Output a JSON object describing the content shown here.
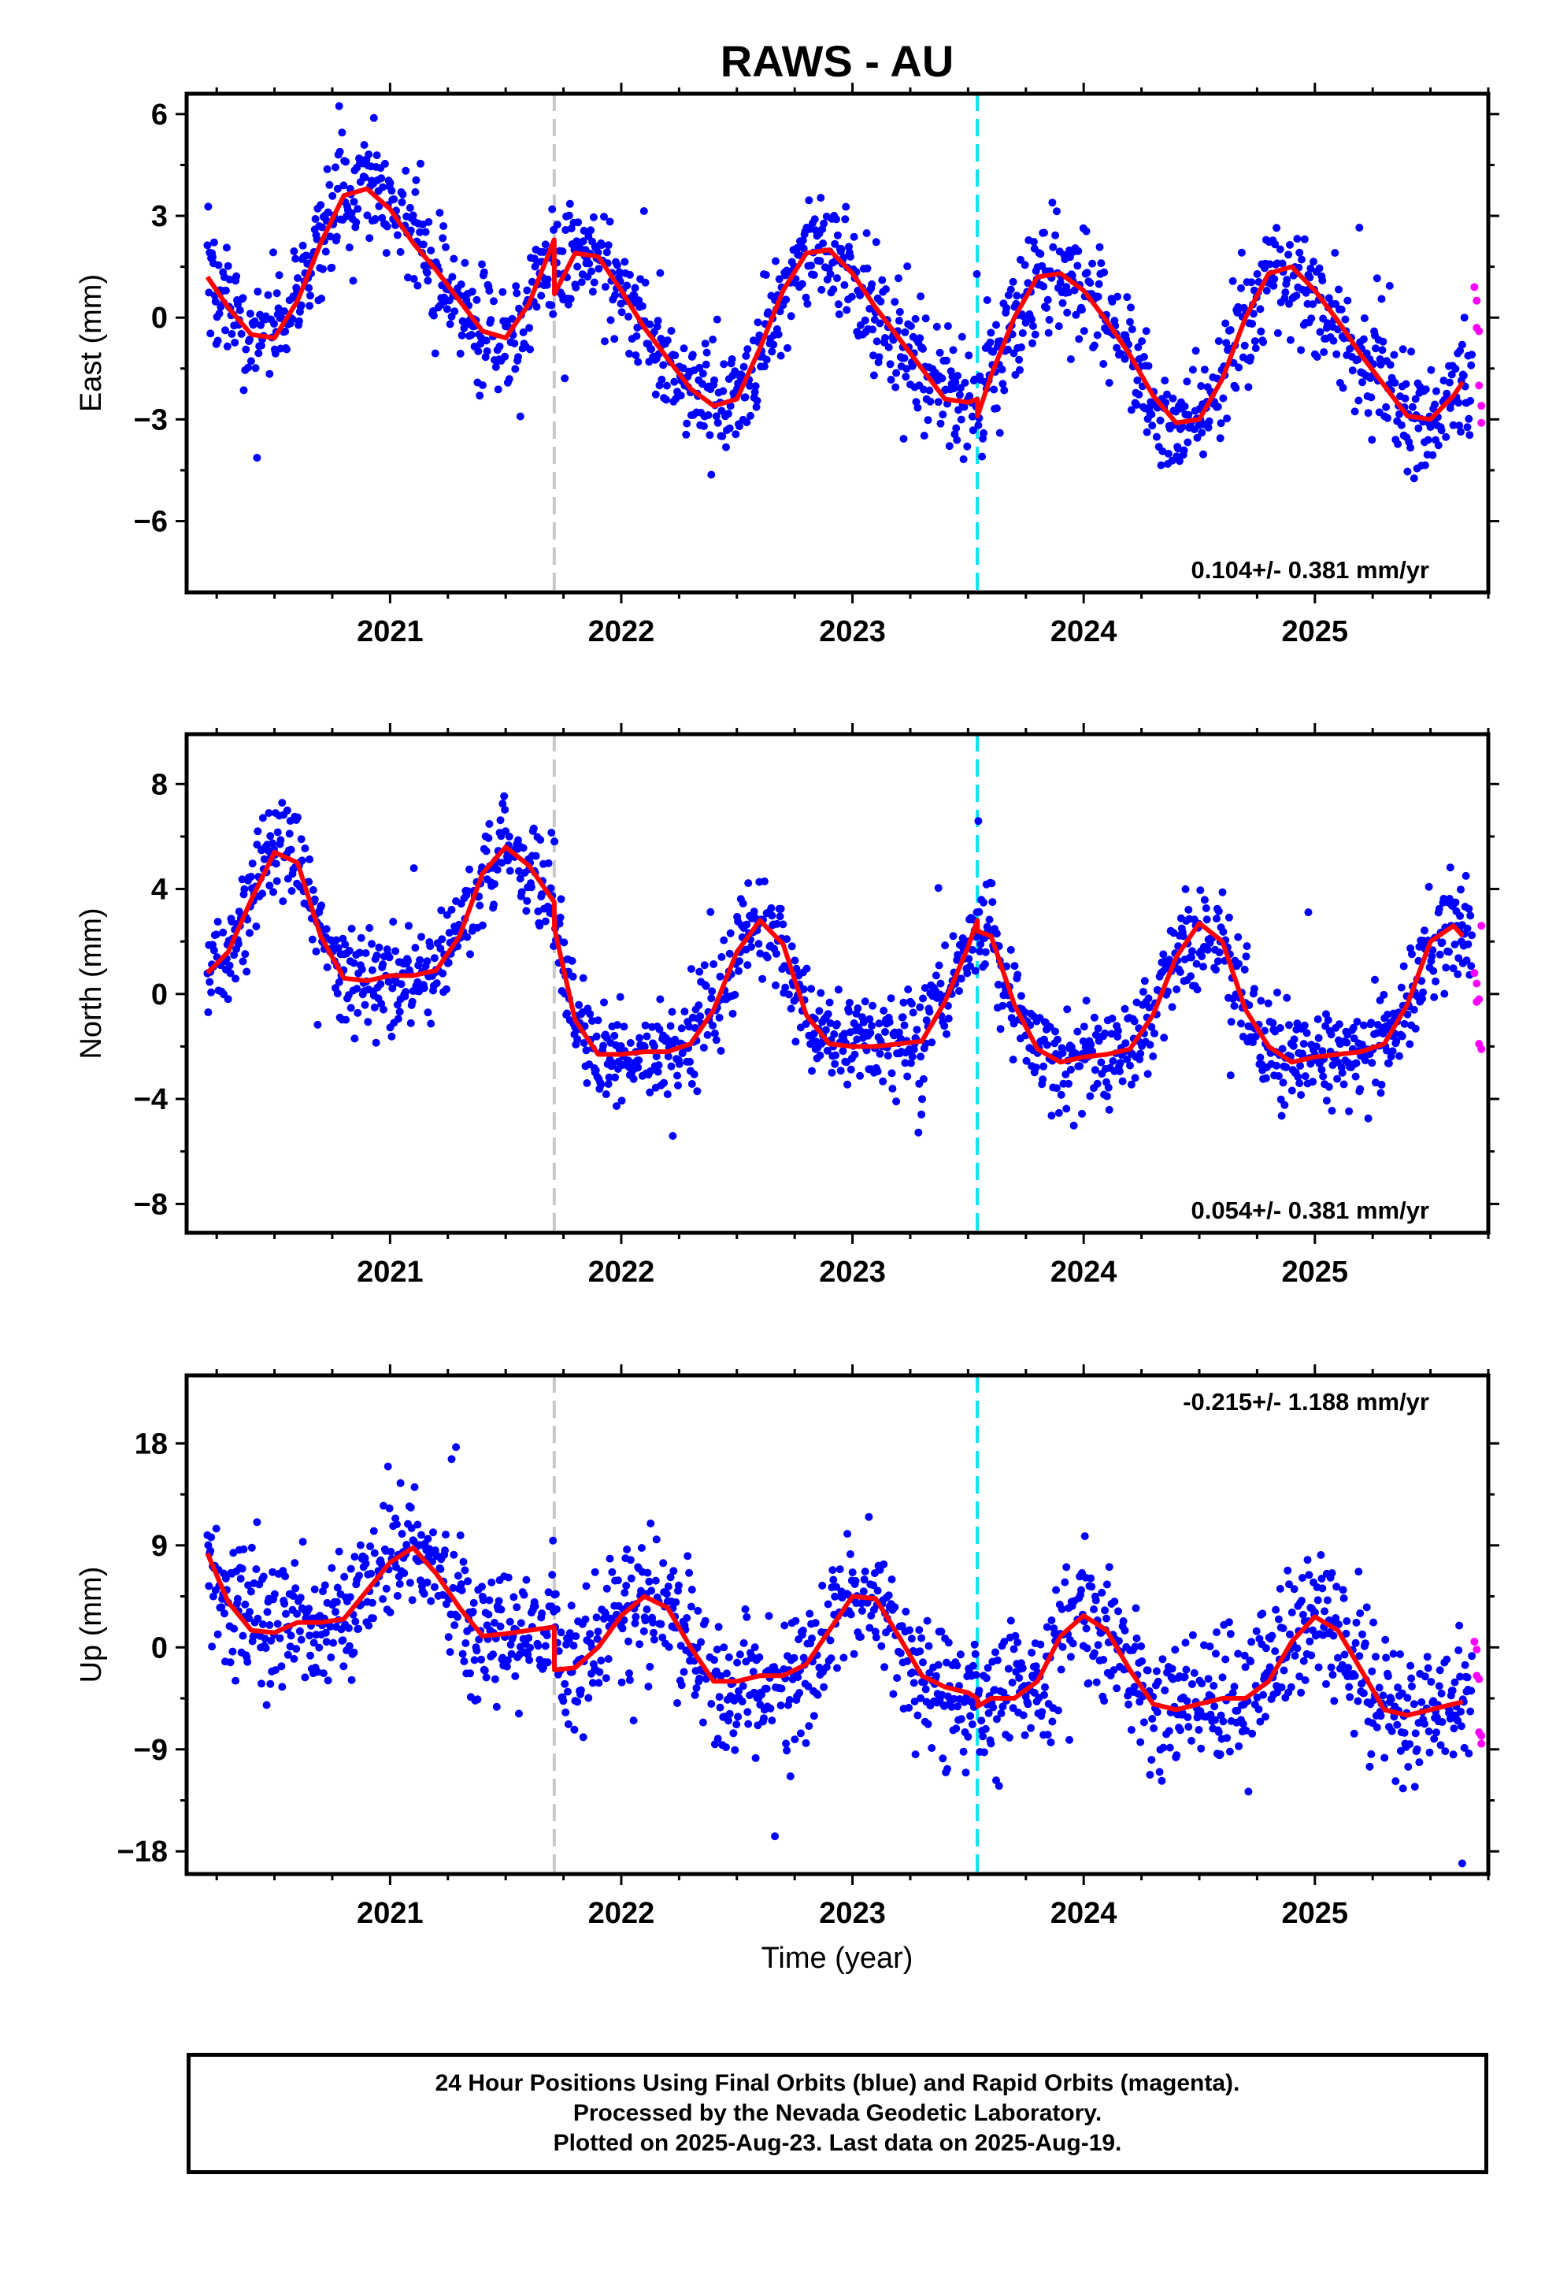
{
  "figure": {
    "title": "RAWS - AU",
    "xlabel": "Time (year)"
  },
  "footer": {
    "lines": [
      "24 Hour Positions Using Final Orbits (blue) and Rapid Orbits (magenta).",
      "Processed by the Nevada Geodetic Laboratory.",
      "Plotted on 2025-Aug-23. Last data on 2025-Aug-19."
    ]
  },
  "colors": {
    "final_orbits": "#0000ff",
    "rapid_orbits": "#ff00ff",
    "model_fit": "#ff0000",
    "antenna_change": "#c8c8c8",
    "equipment_change": "#00e5ee",
    "frame": "#000000"
  },
  "chart_data": [
    {
      "type": "scatter",
      "component": "east",
      "ylabel": "East (mm)",
      "xlim": [
        2020.12,
        2025.75
      ],
      "ylim": [
        -8.1,
        6.6
      ],
      "yticks": [
        -6,
        -3,
        0,
        3,
        6
      ],
      "xticks": [
        2021,
        2022,
        2023,
        2024,
        2025
      ],
      "rate_label": "0.104+/- 0.381 mm/yr",
      "rate_position": "bottom-right",
      "vertical_markers": [
        {
          "x": 2021.71,
          "style": "dashed",
          "color": "gray"
        },
        {
          "x": 2023.54,
          "style": "dashed",
          "color": "cyan"
        }
      ],
      "model": {
        "name": "model fit",
        "x": [
          2020.21,
          2020.3,
          2020.4,
          2020.5,
          2020.6,
          2020.7,
          2020.8,
          2020.9,
          2021.0,
          2021.1,
          2021.2,
          2021.3,
          2021.4,
          2021.5,
          2021.6,
          2021.71,
          2021.711,
          2021.8,
          2021.9,
          2022.0,
          2022.1,
          2022.2,
          2022.3,
          2022.4,
          2022.5,
          2022.6,
          2022.7,
          2022.8,
          2022.9,
          2023.0,
          2023.1,
          2023.2,
          2023.3,
          2023.4,
          2023.5,
          2023.54,
          2023.541,
          2023.6,
          2023.7,
          2023.8,
          2023.9,
          2024.0,
          2024.1,
          2024.2,
          2024.3,
          2024.4,
          2024.5,
          2024.6,
          2024.7,
          2024.8,
          2024.9,
          2025.0,
          2025.1,
          2025.2,
          2025.3,
          2025.4,
          2025.5,
          2025.6,
          2025.64
        ],
        "y": [
          1.2,
          0.3,
          -0.5,
          -0.6,
          0.5,
          2.2,
          3.6,
          3.8,
          3.2,
          2.2,
          1.4,
          0.5,
          -0.4,
          -0.6,
          0.4,
          2.3,
          0.7,
          1.9,
          1.8,
          0.8,
          -0.3,
          -1.2,
          -2.1,
          -2.6,
          -2.4,
          -0.9,
          0.8,
          1.9,
          2.0,
          1.3,
          0.3,
          -0.6,
          -1.5,
          -2.4,
          -2.5,
          -2.4,
          -2.9,
          -1.7,
          0.0,
          1.2,
          1.3,
          0.8,
          -0.1,
          -1.1,
          -2.3,
          -3.1,
          -3.0,
          -1.8,
          0.0,
          1.3,
          1.5,
          0.8,
          -0.1,
          -1.1,
          -2.0,
          -2.9,
          -3.0,
          -2.3,
          -1.9
        ]
      },
      "rapid_points": {
        "x": [
          2025.69,
          2025.7,
          2025.7,
          2025.71,
          2025.71,
          2025.72,
          2025.72
        ],
        "y": [
          0.9,
          0.5,
          -0.3,
          -0.4,
          -2.0,
          -2.6,
          -3.1
        ]
      }
    },
    {
      "type": "scatter",
      "component": "north",
      "ylabel": "North (mm)",
      "xlim": [
        2020.12,
        2025.75
      ],
      "ylim": [
        -9.1,
        9.9
      ],
      "yticks": [
        -8,
        -4,
        0,
        4,
        8
      ],
      "xticks": [
        2021,
        2022,
        2023,
        2024,
        2025
      ],
      "rate_label": "0.054+/- 0.381 mm/yr",
      "rate_position": "bottom-right",
      "vertical_markers": [
        {
          "x": 2021.71,
          "style": "dashed",
          "color": "gray"
        },
        {
          "x": 2023.54,
          "style": "dashed",
          "color": "cyan"
        }
      ],
      "model": {
        "name": "model fit",
        "x": [
          2020.21,
          2020.3,
          2020.4,
          2020.5,
          2020.6,
          2020.7,
          2020.8,
          2020.9,
          2021.0,
          2021.1,
          2021.2,
          2021.3,
          2021.4,
          2021.5,
          2021.6,
          2021.71,
          2021.711,
          2021.8,
          2021.9,
          2022.0,
          2022.1,
          2022.2,
          2022.3,
          2022.4,
          2022.5,
          2022.6,
          2022.7,
          2022.8,
          2022.9,
          2023.0,
          2023.1,
          2023.2,
          2023.3,
          2023.4,
          2023.5,
          2023.54,
          2023.541,
          2023.6,
          2023.7,
          2023.8,
          2023.9,
          2024.0,
          2024.1,
          2024.2,
          2024.3,
          2024.4,
          2024.5,
          2024.6,
          2024.7,
          2024.8,
          2024.9,
          2025.0,
          2025.1,
          2025.2,
          2025.3,
          2025.4,
          2025.5,
          2025.6,
          2025.64
        ],
        "y": [
          0.8,
          1.6,
          3.6,
          5.4,
          5.0,
          2.2,
          0.6,
          0.5,
          0.7,
          0.7,
          0.9,
          2.2,
          4.6,
          5.6,
          4.9,
          3.5,
          2.5,
          -1.0,
          -2.3,
          -2.3,
          -2.2,
          -2.2,
          -1.9,
          -0.6,
          1.6,
          2.8,
          1.9,
          -0.8,
          -1.9,
          -2.0,
          -2.0,
          -1.9,
          -1.8,
          -0.3,
          1.8,
          2.8,
          2.4,
          2.2,
          -0.4,
          -2.1,
          -2.6,
          -2.4,
          -2.3,
          -2.1,
          -0.8,
          1.4,
          2.7,
          2.0,
          -0.6,
          -2.0,
          -2.6,
          -2.4,
          -2.3,
          -2.2,
          -1.9,
          -0.4,
          2.0,
          2.6,
          2.2
        ]
      },
      "rapid_points": {
        "x": [
          2025.69,
          2025.7,
          2025.7,
          2025.71,
          2025.71,
          2025.72,
          2025.72
        ],
        "y": [
          0.8,
          0.4,
          -0.3,
          -0.2,
          -1.9,
          -2.1,
          2.6
        ]
      }
    },
    {
      "type": "scatter",
      "component": "up",
      "ylabel": "Up (mm)",
      "xlim": [
        2020.12,
        2025.75
      ],
      "ylim": [
        -20,
        24
      ],
      "yticks": [
        -18,
        -9,
        0,
        9,
        18
      ],
      "xticks": [
        2021,
        2022,
        2023,
        2024,
        2025
      ],
      "rate_label": "-0.215+/- 1.188 mm/yr",
      "rate_position": "top-right",
      "vertical_markers": [
        {
          "x": 2021.71,
          "style": "dashed",
          "color": "gray"
        },
        {
          "x": 2023.54,
          "style": "dashed",
          "color": "cyan"
        }
      ],
      "model": {
        "name": "model fit",
        "x": [
          2020.21,
          2020.3,
          2020.4,
          2020.5,
          2020.6,
          2020.7,
          2020.8,
          2020.9,
          2021.0,
          2021.1,
          2021.2,
          2021.3,
          2021.4,
          2021.5,
          2021.6,
          2021.71,
          2021.711,
          2021.8,
          2021.9,
          2022.0,
          2022.1,
          2022.2,
          2022.3,
          2022.4,
          2022.5,
          2022.6,
          2022.7,
          2022.8,
          2022.9,
          2023.0,
          2023.1,
          2023.2,
          2023.3,
          2023.4,
          2023.5,
          2023.54,
          2023.541,
          2023.6,
          2023.7,
          2023.8,
          2023.9,
          2024.0,
          2024.1,
          2024.2,
          2024.3,
          2024.4,
          2024.5,
          2024.6,
          2024.7,
          2024.8,
          2024.9,
          2025.0,
          2025.1,
          2025.2,
          2025.3,
          2025.4,
          2025.5,
          2025.6,
          2025.64
        ],
        "y": [
          8.3,
          4.0,
          1.5,
          1.3,
          2.2,
          2.2,
          2.5,
          5.0,
          7.5,
          8.8,
          6.5,
          3.5,
          1.0,
          1.2,
          1.5,
          1.8,
          -2.0,
          -1.8,
          0.0,
          2.8,
          4.5,
          3.5,
          0.0,
          -3.0,
          -3.0,
          -2.5,
          -2.5,
          -1.5,
          1.5,
          4.5,
          4.3,
          1.0,
          -2.5,
          -3.5,
          -4.0,
          -4.5,
          -5.2,
          -4.5,
          -4.5,
          -3.0,
          1.0,
          2.8,
          1.5,
          -2.0,
          -5.0,
          -5.5,
          -5.0,
          -4.5,
          -4.5,
          -3.0,
          0.5,
          2.7,
          1.5,
          -2.0,
          -5.5,
          -6.0,
          -5.5,
          -5.0,
          -4.8
        ]
      },
      "rapid_points": {
        "x": [
          2025.69,
          2025.7,
          2025.7,
          2025.71,
          2025.71,
          2025.72,
          2025.72
        ],
        "y": [
          0.5,
          -0.2,
          -2.5,
          -2.8,
          -7.5,
          -8.5,
          -7.8
        ]
      }
    }
  ]
}
